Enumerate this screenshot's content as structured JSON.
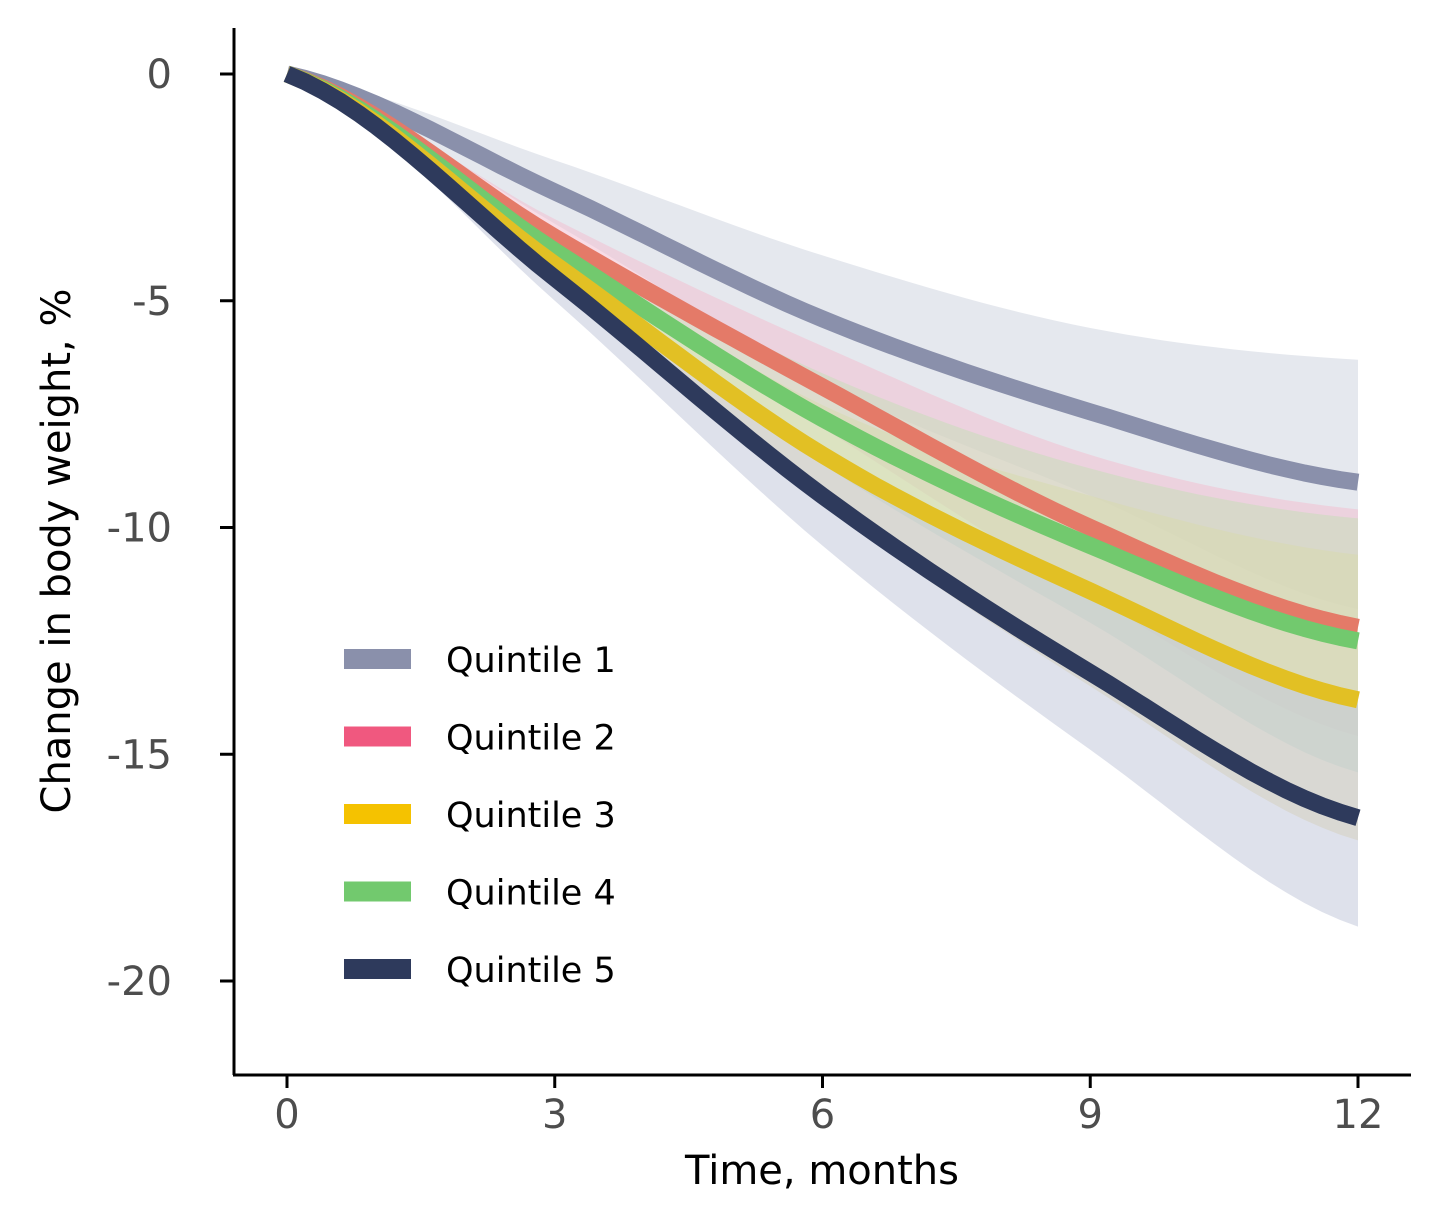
{
  "chart_data": {
    "type": "line",
    "title": "",
    "xlabel": "Time, months",
    "ylabel": "Change in body weight, %",
    "xlim": [
      -0.6,
      12.6
    ],
    "ylim": [
      -22.1,
      1
    ],
    "x_ticks": [
      0,
      3,
      6,
      9,
      12
    ],
    "x_tick_labels": [
      "0",
      "3",
      "6",
      "9",
      "12"
    ],
    "y_ticks": [
      0,
      -5,
      -10,
      -15,
      -20
    ],
    "y_tick_labels": [
      "0",
      "-5",
      "-10",
      "-15",
      "-20"
    ],
    "grid": false,
    "legend_position": "bottom-left",
    "x": [
      0,
      3,
      6,
      9,
      12
    ],
    "series": [
      {
        "name": "Quintile 1",
        "color": "#8a90ab",
        "band_color": "#cfd5e0",
        "values": [
          0,
          -2.6,
          -5.4,
          -7.45,
          -9.0
        ],
        "ci_upper": [
          0,
          -1.9,
          -4.0,
          -5.6,
          -6.3
        ],
        "ci_lower": [
          0,
          -3.3,
          -6.8,
          -9.3,
          -11.8
        ]
      },
      {
        "name": "Quintile 2",
        "color": "#f0587f",
        "band_color": "#f2bfd2",
        "values": [
          0,
          -3.6,
          -6.9,
          -10.0,
          -12.2
        ],
        "ci_upper": [
          0,
          -3.2,
          -6.0,
          -8.4,
          -9.6
        ],
        "ci_lower": [
          0,
          -4.0,
          -7.8,
          -11.5,
          -14.6
        ]
      },
      {
        "name": "Quintile 3",
        "color": "#f5c200",
        "band_color": "#e9d8a0",
        "values": [
          0,
          -4.2,
          -8.4,
          -11.4,
          -13.8
        ],
        "ci_upper": [
          0,
          -3.7,
          -7.3,
          -9.3,
          -10.6
        ],
        "ci_lower": [
          0,
          -4.7,
          -9.5,
          -13.5,
          -16.9
        ]
      },
      {
        "name": "Quintile 4",
        "color": "#72c96e",
        "band_color": "#c9dcba",
        "values": [
          0,
          -3.9,
          -7.6,
          -10.4,
          -12.5
        ],
        "ci_upper": [
          0,
          -3.5,
          -6.6,
          -8.7,
          -9.8
        ],
        "ci_lower": [
          0,
          -4.3,
          -8.6,
          -12.1,
          -15.4
        ]
      },
      {
        "name": "Quintile 5",
        "color": "#2e3a5c",
        "band_color": "#c3c9da",
        "values": [
          0,
          -4.5,
          -9.3,
          -13.2,
          -16.4
        ],
        "ci_upper": [
          0,
          -4.0,
          -8.3,
          -11.6,
          -13.9
        ],
        "ci_lower": [
          0,
          -5.0,
          -10.4,
          -14.9,
          -18.8
        ]
      }
    ]
  }
}
